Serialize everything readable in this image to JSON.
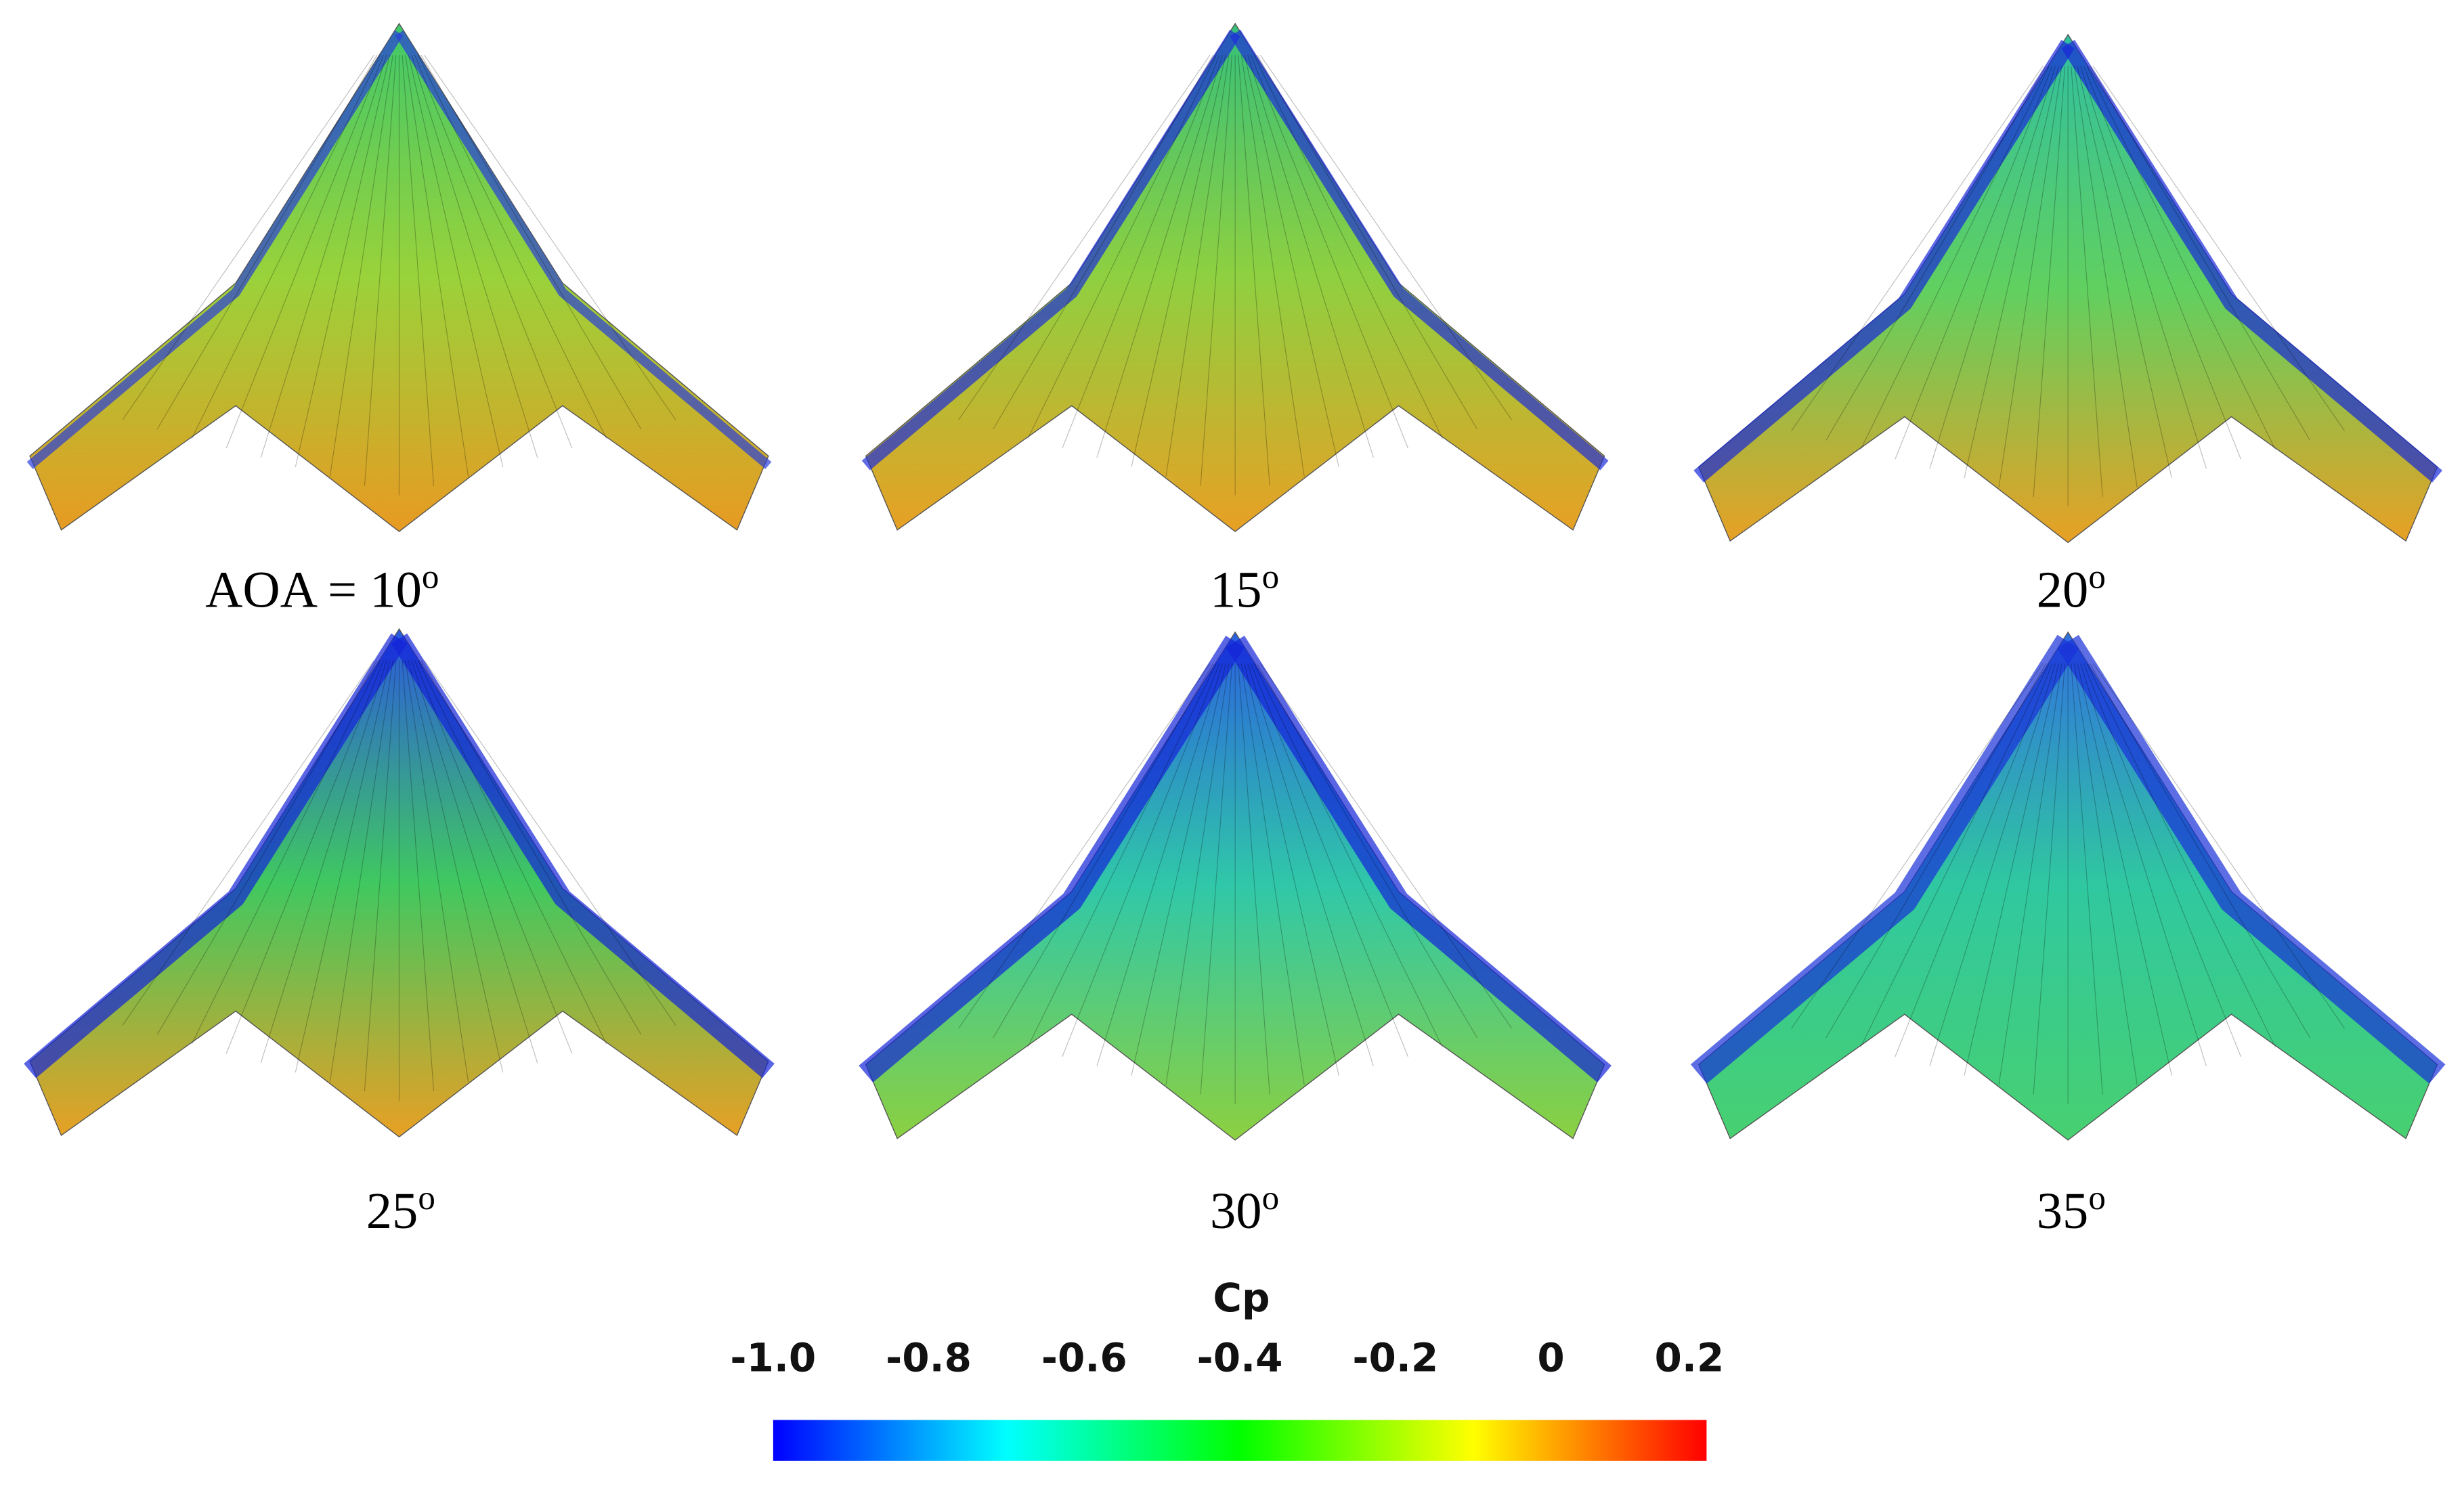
{
  "panels": [
    {
      "label": "AOA = 10",
      "degree": "o",
      "fill": [
        "#3fc86a",
        "#9ad23a",
        "#e89a22"
      ],
      "edge": "#2a3fd8"
    },
    {
      "label": "15",
      "degree": "o",
      "fill": [
        "#35c07a",
        "#8fd040",
        "#e8a024"
      ],
      "edge": "#1e2ed8"
    },
    {
      "label": "20",
      "degree": "o",
      "fill": [
        "#30bfa0",
        "#60d060",
        "#e8a024"
      ],
      "edge": "#1828d8"
    },
    {
      "label": "25",
      "degree": "o",
      "fill": [
        "#2a58e0",
        "#40c860",
        "#e8a024"
      ],
      "edge": "#1424d8"
    },
    {
      "label": "30",
      "degree": "o",
      "fill": [
        "#2a60e0",
        "#30c8a8",
        "#8cd040"
      ],
      "edge": "#1424d8"
    },
    {
      "label": "35",
      "degree": "o",
      "fill": [
        "#3070e0",
        "#30c8a0",
        "#48d070"
      ],
      "edge": "#1830d8"
    }
  ],
  "colorbar": {
    "title": "Cp",
    "clim": [
      -1,
      0.2
    ],
    "ticks": [
      {
        "value": -1,
        "label": "-1.0"
      },
      -0.8,
      -0.6,
      -0.4,
      -0.2,
      0,
      0.2
    ],
    "colormap": [
      "#0000ff",
      "#00ffff",
      "#00ff00",
      "#ffff00",
      "#ff0000"
    ]
  }
}
